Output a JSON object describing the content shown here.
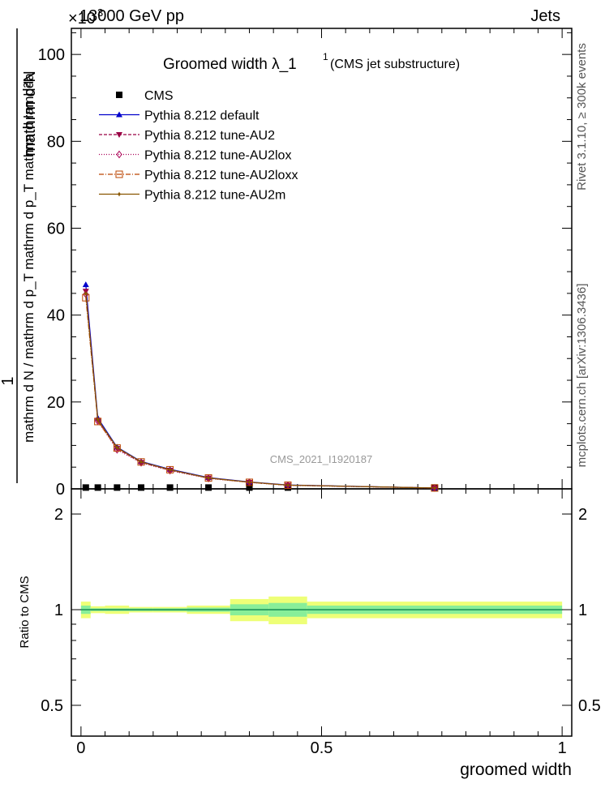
{
  "header": {
    "energy": "13000 GeV pp",
    "process": "Jets",
    "multiplier": "×10",
    "multiplier_exp": "3"
  },
  "side_labels": {
    "rivet": "Rivet 3.1.10, ≥ 300k events",
    "mcplots": "mcplots.cern.ch [arXiv:1306.3436]"
  },
  "chart_data": [
    {
      "type": "scatter",
      "title": "Groomed width  λ_1",
      "title_sup": "1",
      "title_note": "(CMS jet substructure)",
      "analysis_tag": "CMS_2021_I1920187",
      "ylabel_numerator_left": "1",
      "ylabel_numerator_right": "mathrm d²N",
      "ylabel_denominator": "mathrm d N / mathrm d p_T mathrm d p_T mathrm d lambda",
      "ylim": [
        0,
        106
      ],
      "yticks": [
        0,
        20,
        40,
        60,
        80,
        100
      ],
      "xlim": [
        -0.02,
        1.02
      ],
      "legend_position": "top-left",
      "bins": [
        [
          0.0,
          0.02
        ],
        [
          0.02,
          0.05
        ],
        [
          0.05,
          0.1
        ],
        [
          0.1,
          0.15
        ],
        [
          0.15,
          0.22
        ],
        [
          0.22,
          0.31
        ],
        [
          0.31,
          0.39
        ],
        [
          0.39,
          0.47
        ],
        [
          0.47,
          1.0
        ]
      ],
      "x": [
        0.01,
        0.035,
        0.075,
        0.125,
        0.185,
        0.265,
        0.35,
        0.43,
        0.735
      ],
      "series": [
        {
          "name": "CMS",
          "color": "#000000",
          "marker": "square",
          "values": [
            0.3,
            0.3,
            0.3,
            0.3,
            0.3,
            0.3,
            0.3,
            0.3,
            0.3
          ]
        },
        {
          "name": "Pythia 8.212 default",
          "color": "#0000cc",
          "marker": "triangle-up",
          "dash": "",
          "values": [
            47.0,
            16.3,
            9.6,
            6.3,
            4.5,
            2.6,
            1.6,
            0.9,
            0.2
          ]
        },
        {
          "name": "Pythia 8.212 tune-AU2",
          "color": "#990044",
          "marker": "triangle-down",
          "dash": "4,2",
          "values": [
            45.5,
            15.8,
            9.3,
            6.1,
            4.3,
            2.5,
            1.5,
            0.85,
            0.2
          ]
        },
        {
          "name": "Pythia 8.212 tune-AU2lox",
          "color": "#aa0055",
          "marker": "diamond",
          "dash": "1,2",
          "values": [
            44.8,
            15.6,
            9.0,
            6.0,
            4.2,
            2.4,
            1.5,
            0.8,
            0.2
          ]
        },
        {
          "name": "Pythia 8.212 tune-AU2loxx",
          "color": "#bb4400",
          "marker": "open-square",
          "dash": "6,2,1,2",
          "values": [
            44.0,
            15.5,
            9.4,
            6.2,
            4.4,
            2.5,
            1.5,
            0.85,
            0.2
          ]
        },
        {
          "name": "Pythia 8.212 tune-AU2m",
          "color": "#885500",
          "marker": "star",
          "dash": "",
          "values": [
            45.0,
            15.9,
            9.5,
            6.2,
            4.4,
            2.5,
            1.55,
            0.85,
            0.2
          ]
        }
      ]
    },
    {
      "type": "line",
      "ylabel": "Ratio to CMS",
      "xlabel": "groomed width",
      "ylim": [
        0.4,
        2.4
      ],
      "yscale": "log",
      "yticks": [
        0.5,
        1,
        2
      ],
      "ytick_labels": [
        "0.5",
        "1",
        "2"
      ],
      "xlim": [
        -0.02,
        1.02
      ],
      "xticks": [
        0,
        0.5,
        1
      ],
      "xtick_labels": [
        "0",
        "0.5",
        "1"
      ],
      "bins": [
        [
          0.0,
          0.02
        ],
        [
          0.02,
          0.05
        ],
        [
          0.05,
          0.1
        ],
        [
          0.1,
          0.15
        ],
        [
          0.15,
          0.22
        ],
        [
          0.22,
          0.31
        ],
        [
          0.31,
          0.39
        ],
        [
          0.39,
          0.47
        ],
        [
          0.47,
          1.0
        ]
      ],
      "band_inner": [
        0.03,
        0.01,
        0.01,
        0.01,
        0.01,
        0.015,
        0.04,
        0.05,
        0.03
      ],
      "band_outer": [
        0.06,
        0.025,
        0.03,
        0.02,
        0.02,
        0.03,
        0.08,
        0.1,
        0.06
      ],
      "band_inner_color": "#88ee99",
      "band_outer_color": "#eeff77",
      "ratios": [
        {
          "name": "Pythia 8.212 default",
          "color": "#0000cc",
          "values": [
            1.0,
            1.0,
            1.0,
            1.0,
            1.0,
            1.0,
            1.0,
            1.0,
            1.0
          ]
        },
        {
          "name": "Pythia 8.212 tune-AU2m",
          "color": "#22aa44",
          "values": [
            1.0,
            1.0,
            1.0,
            1.0,
            1.0,
            1.0,
            1.0,
            1.0,
            1.0
          ]
        }
      ]
    }
  ]
}
